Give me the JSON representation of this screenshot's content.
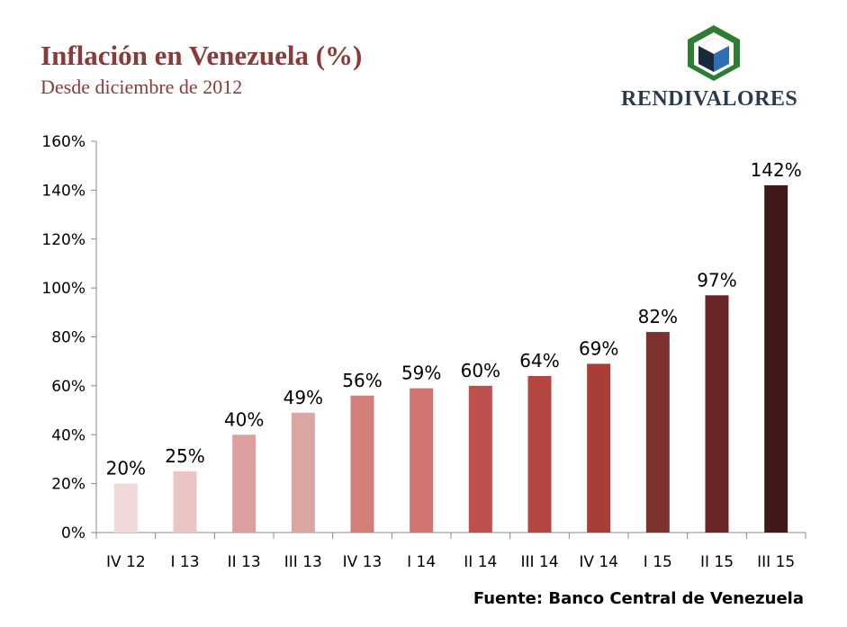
{
  "header": {
    "title": "Inflación en Venezuela (%)",
    "subtitle": "Desde diciembre de 2012"
  },
  "logo": {
    "text": "RENDIVALORES",
    "icon": "cube-hexagon-icon",
    "colors": {
      "hexagon": "#2e7d32",
      "top": "#ffffff",
      "left": "#1b2a3a",
      "right": "#2f6fb5"
    }
  },
  "source": "Fuente: Banco Central de Venezuela",
  "chart_data": {
    "type": "bar",
    "categories": [
      "IV 12",
      "I 13",
      "II 13",
      "III 13",
      "IV 13",
      "I 14",
      "II 14",
      "III 14",
      "IV 14",
      "I 15",
      "II 15",
      "III 15"
    ],
    "values": [
      20,
      25,
      40,
      49,
      56,
      59,
      60,
      64,
      69,
      82,
      97,
      142
    ],
    "data_labels": [
      "20%",
      "25%",
      "40%",
      "49%",
      "56%",
      "59%",
      "60%",
      "64%",
      "69%",
      "82%",
      "97%",
      "142%"
    ],
    "colors": [
      "#f2d9d9",
      "#ebc5c3",
      "#dca09e",
      "#dba5a4",
      "#d47e7a",
      "#d17470",
      "#c0504d",
      "#b54541",
      "#a93d38",
      "#7e312f",
      "#6a2626",
      "#401a1a"
    ],
    "ylim": [
      0,
      160
    ],
    "yticks": [
      0,
      20,
      40,
      60,
      80,
      100,
      120,
      140,
      160
    ],
    "ytick_labels": [
      "0%",
      "20%",
      "40%",
      "60%",
      "80%",
      "100%",
      "120%",
      "140%",
      "160%"
    ],
    "grid": false,
    "legend": "none"
  }
}
